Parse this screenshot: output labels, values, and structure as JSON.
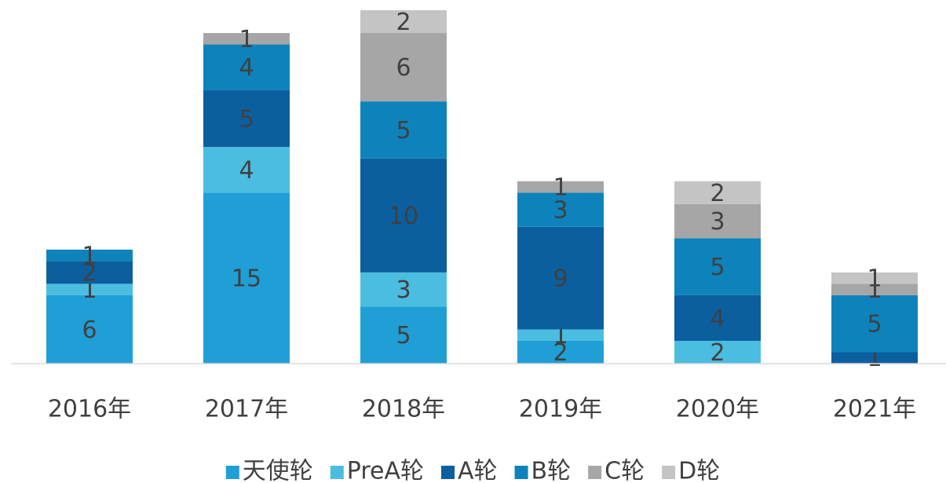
{
  "chart_data": {
    "type": "stacked_bar",
    "categories": [
      "2016年",
      "2017年",
      "2018年",
      "2019年",
      "2020年",
      "2021年"
    ],
    "series": [
      {
        "name": "天使轮",
        "color": "#1f9fd6",
        "values": [
          6,
          15,
          5,
          2,
          null,
          null
        ]
      },
      {
        "name": "PreA轮",
        "color": "#4bbde0",
        "values": [
          1,
          4,
          3,
          1,
          2,
          null
        ]
      },
      {
        "name": "A轮",
        "color": "#0b5f9e",
        "values": [
          2,
          5,
          10,
          9,
          4,
          1
        ]
      },
      {
        "name": "B轮",
        "color": "#0e83bb",
        "values": [
          1,
          4,
          5,
          3,
          5,
          5
        ]
      },
      {
        "name": "C轮",
        "color": "#a6a6a6",
        "values": [
          null,
          1,
          6,
          1,
          3,
          1
        ]
      },
      {
        "name": "D轮",
        "color": "#c4c4c4",
        "values": [
          null,
          null,
          2,
          null,
          2,
          1
        ]
      }
    ],
    "ylim": [
      0,
      31
    ]
  }
}
